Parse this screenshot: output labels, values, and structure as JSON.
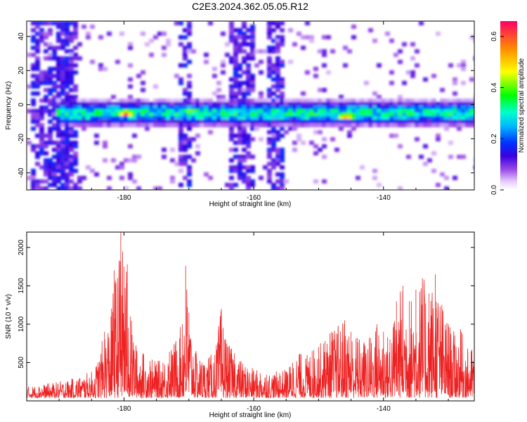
{
  "title": "C2E3.2024.362.05.05.R12",
  "chart_data": [
    {
      "type": "heatmap",
      "xlabel": "Height of straight line (km)",
      "ylabel": "Frequency (Hz)",
      "xlim": [
        -195,
        -126
      ],
      "ylim": [
        -50,
        49
      ],
      "xticks": [
        -180,
        -160,
        -140
      ],
      "yticks": [
        -40,
        -20,
        0,
        20,
        40
      ],
      "colorbar": {
        "label": "Normalized spectral amplitude",
        "range": [
          0,
          0.66
        ],
        "ticks": [
          0.0,
          0.2,
          0.4,
          0.6
        ],
        "tick_labels": [
          "0.0",
          "0.2",
          "0.4",
          "0.6"
        ]
      },
      "band_center_hz": -4,
      "hot_spots": [
        {
          "x": -180,
          "y": -4,
          "amplitude": 0.66
        },
        {
          "x": -170,
          "y": -3,
          "amplitude": 0.5
        },
        {
          "x": -146,
          "y": -6,
          "amplitude": 0.62
        },
        {
          "x": -155,
          "y": -5,
          "amplitude": 0.38
        },
        {
          "x": -128,
          "y": -6,
          "amplitude": 0.35
        }
      ]
    },
    {
      "type": "line",
      "xlabel": "Height of straight line (km)",
      "ylabel": "SNR (10 * v/v)",
      "xlim": [
        -195,
        -126
      ],
      "ylim": [
        0,
        2200
      ],
      "xticks": [
        -180,
        -160,
        -140
      ],
      "yticks": [
        500,
        1000,
        1500,
        2000
      ],
      "series": [
        {
          "color": "#ee2222",
          "x": [
            -195,
            -193,
            -191,
            -189,
            -187,
            -185,
            -184,
            -183,
            -182,
            -181.5,
            -181,
            -180.5,
            -180,
            -179.5,
            -179,
            -178,
            -177,
            -176,
            -175,
            -174,
            -173,
            -172,
            -171,
            -170.5,
            -170,
            -169,
            -168,
            -167,
            -166,
            -165,
            -164,
            -163,
            -162,
            -161,
            -160,
            -159,
            -158,
            -157,
            -156,
            -155,
            -154,
            -153,
            -152,
            -151,
            -150,
            -149,
            -148,
            -147,
            -146,
            -145,
            -144,
            -143,
            -142,
            -141,
            -140,
            -139,
            -138,
            -137,
            -136,
            -135,
            -134,
            -133,
            -132,
            -131,
            -130,
            -129,
            -128,
            -127,
            -126
          ],
          "y": [
            150,
            170,
            200,
            230,
            280,
            350,
            500,
            900,
            1100,
            1700,
            1600,
            2200,
            1750,
            1780,
            1100,
            650,
            600,
            520,
            480,
            500,
            640,
            780,
            1000,
            1760,
            1150,
            620,
            500,
            550,
            600,
            1200,
            700,
            620,
            500,
            420,
            380,
            360,
            340,
            330,
            360,
            380,
            500,
            600,
            550,
            650,
            700,
            780,
            900,
            960,
            1050,
            900,
            820,
            760,
            820,
            1000,
            900,
            800,
            1300,
            1500,
            1300,
            1450,
            1600,
            1400,
            1650,
            1250,
            1000,
            850,
            900,
            650,
            700
          ]
        }
      ]
    }
  ]
}
